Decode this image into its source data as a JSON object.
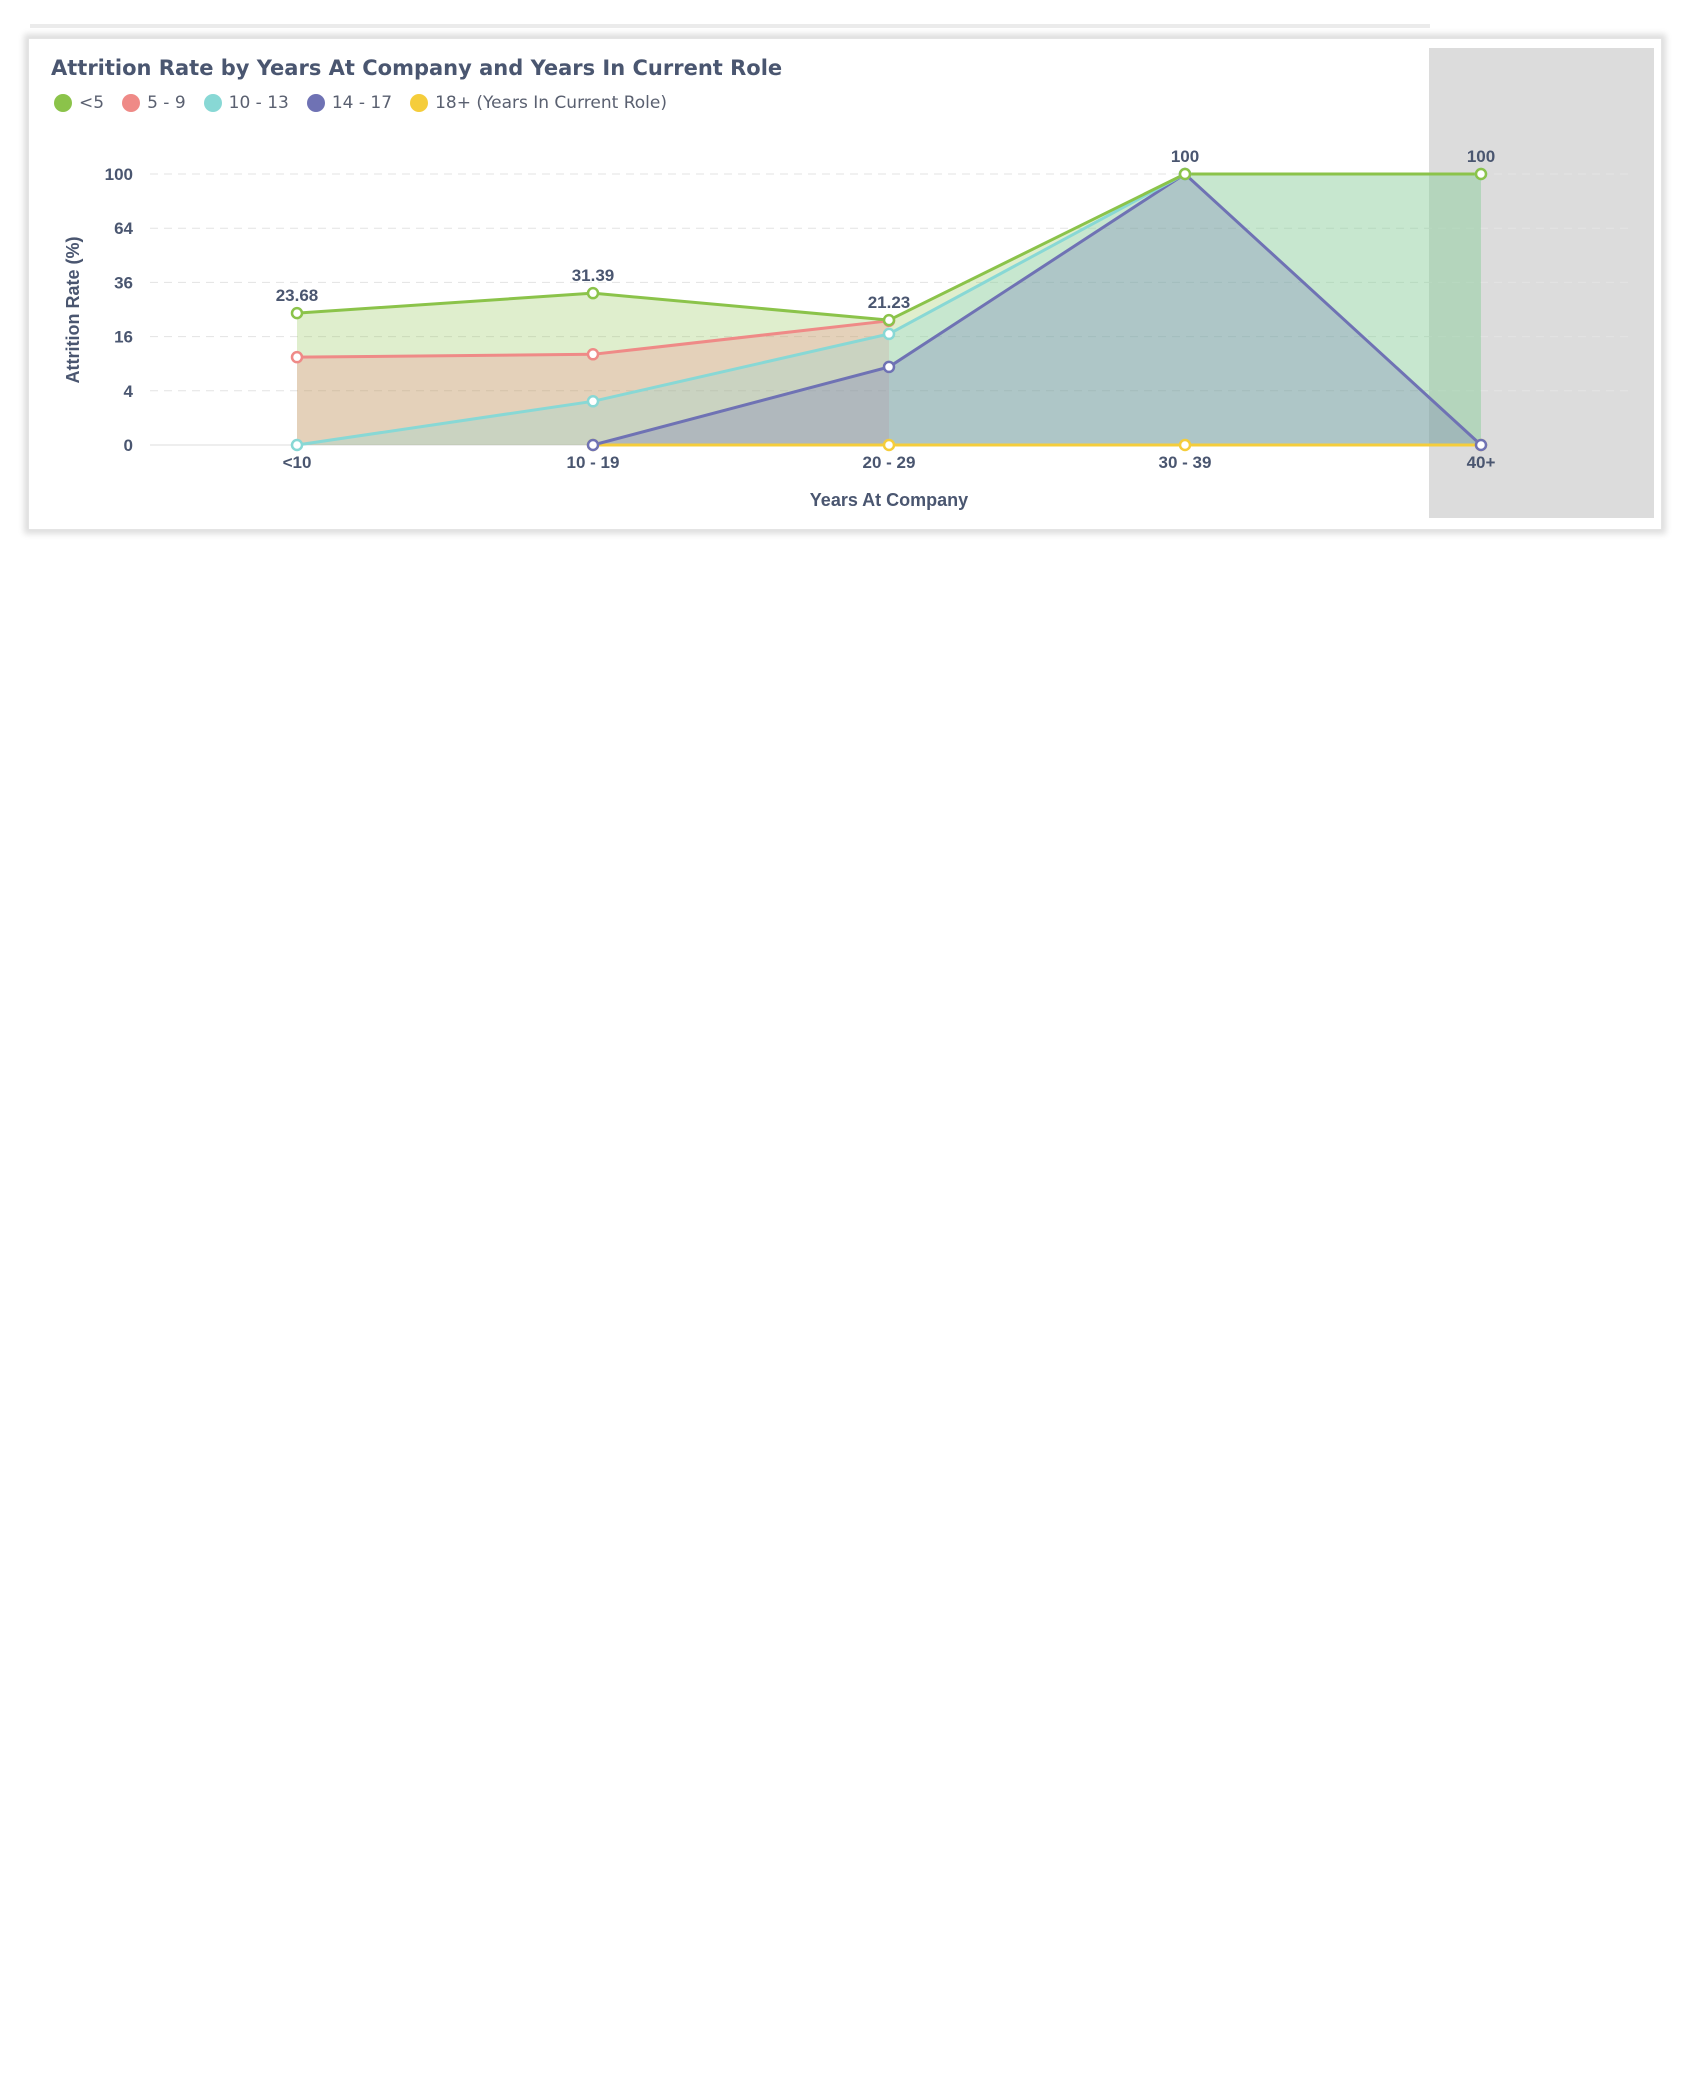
{
  "chart_data": {
    "type": "area",
    "title": "Attrition Rate by Years At Company and Years In Current Role",
    "xlabel": "Years At Company",
    "ylabel": "Attrition Rate (%)",
    "categories": [
      "<10",
      "10 - 19",
      "20 - 29",
      "30 - 39",
      "40+"
    ],
    "y_ticks": [
      0,
      4,
      16,
      36,
      64,
      100
    ],
    "y_scale": "sqrt",
    "ylim": [
      0,
      100
    ],
    "grid": "dashed-horizontal",
    "legend_placement": "top-left",
    "legend_suffix": "(Years In Current Role)",
    "series": [
      {
        "name": "<5",
        "color": "#8bc34a",
        "values": [
          23.68,
          31.39,
          21.23,
          100,
          100
        ],
        "labels": [
          "23.68",
          "31.39",
          "21.23",
          "100",
          "100"
        ]
      },
      {
        "name": "5 - 9",
        "color": "#ef8a87",
        "values": [
          10.5,
          11.2,
          21.0,
          null,
          null
        ]
      },
      {
        "name": "10 - 13",
        "color": "#88d8d5",
        "values": [
          0,
          2.6,
          16.8,
          100,
          100
        ]
      },
      {
        "name": "14 - 17",
        "color": "#6f72b4",
        "values": [
          null,
          0,
          8.3,
          100,
          0
        ]
      },
      {
        "name": "18+",
        "color": "#f5cd3b",
        "values": [
          null,
          0,
          0,
          0,
          0
        ]
      }
    ],
    "selected_category": "40+"
  },
  "legend": {
    "items": [
      {
        "label": "<5",
        "color": "#8bc34a"
      },
      {
        "label": "5 - 9",
        "color": "#ef8a87"
      },
      {
        "label": "10 - 13",
        "color": "#88d8d5"
      },
      {
        "label": "14 - 17",
        "color": "#6f72b4"
      },
      {
        "label": "18+ (Years In Current Role)",
        "color": "#f5cd3b"
      }
    ]
  }
}
